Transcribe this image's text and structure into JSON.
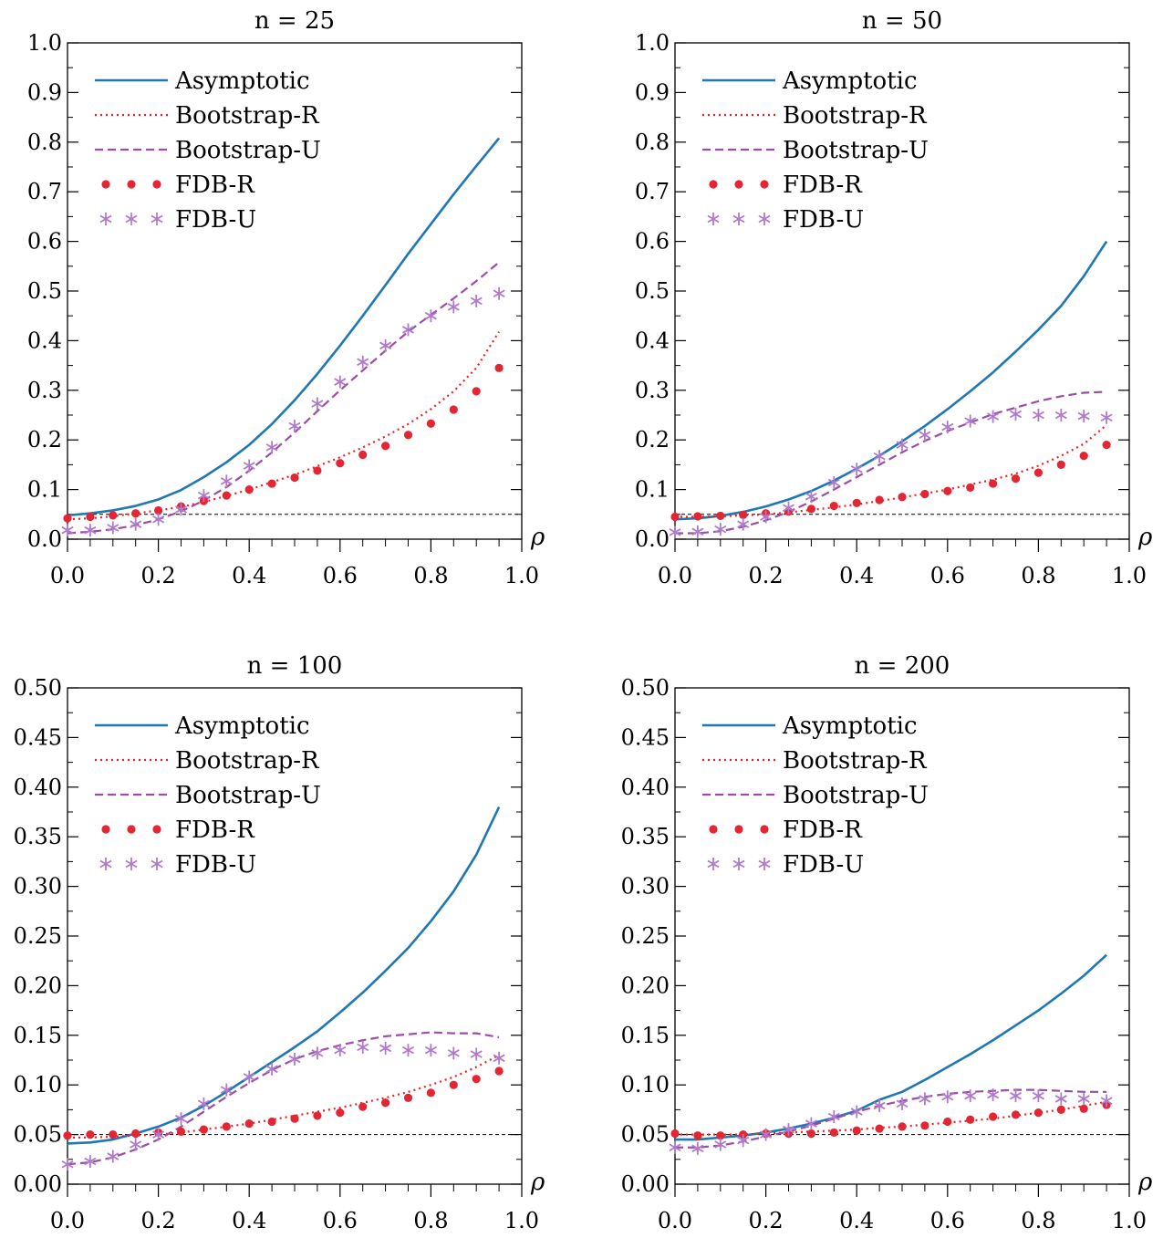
{
  "chart_data": [
    {
      "type": "line",
      "title": "n = 25",
      "xlabel": "ρ",
      "ylabel": "",
      "xlim": [
        0.0,
        1.0
      ],
      "ylim": [
        0.0,
        1.0
      ],
      "x_ticks": [
        "0.0",
        "0.2",
        "0.4",
        "0.6",
        "0.8",
        "1.0"
      ],
      "y_ticks": [
        "0.0",
        "0.1",
        "0.2",
        "0.3",
        "0.4",
        "0.5",
        "0.6",
        "0.7",
        "0.8",
        "0.9",
        "1.0"
      ],
      "reference_line": 0.05,
      "legend_position": "top-left",
      "x": [
        0.0,
        0.05,
        0.1,
        0.15,
        0.2,
        0.25,
        0.3,
        0.35,
        0.4,
        0.45,
        0.5,
        0.55,
        0.6,
        0.65,
        0.7,
        0.75,
        0.8,
        0.85,
        0.9,
        0.95
      ],
      "series": [
        {
          "name": "Asymptotic",
          "style": "solid",
          "color": "#1f77b4",
          "values": [
            0.048,
            0.052,
            0.058,
            0.067,
            0.08,
            0.099,
            0.125,
            0.155,
            0.19,
            0.232,
            0.28,
            0.333,
            0.39,
            0.45,
            0.512,
            0.575,
            0.635,
            0.695,
            0.752,
            0.808
          ]
        },
        {
          "name": "Bootstrap-R",
          "style": "dotted",
          "color": "#ee2222",
          "values": [
            0.04,
            0.042,
            0.046,
            0.052,
            0.058,
            0.065,
            0.075,
            0.087,
            0.1,
            0.115,
            0.13,
            0.147,
            0.165,
            0.185,
            0.207,
            0.232,
            0.262,
            0.298,
            0.345,
            0.418
          ]
        },
        {
          "name": "Bootstrap-U",
          "style": "dashed",
          "color": "#9b4ea6",
          "values": [
            0.012,
            0.015,
            0.02,
            0.028,
            0.04,
            0.056,
            0.078,
            0.105,
            0.138,
            0.175,
            0.215,
            0.258,
            0.3,
            0.34,
            0.38,
            0.418,
            0.452,
            0.485,
            0.52,
            0.558
          ]
        },
        {
          "name": "FDB-R",
          "style": "dots",
          "color": "#e32633",
          "values": [
            0.042,
            0.045,
            0.048,
            0.052,
            0.058,
            0.066,
            0.077,
            0.088,
            0.1,
            0.112,
            0.124,
            0.138,
            0.153,
            0.17,
            0.188,
            0.21,
            0.233,
            0.261,
            0.298,
            0.345
          ]
        },
        {
          "name": "FDB-U",
          "style": "stars",
          "color": "#b07acc",
          "values": [
            0.018,
            0.018,
            0.023,
            0.03,
            0.04,
            0.06,
            0.088,
            0.117,
            0.148,
            0.185,
            0.228,
            0.273,
            0.317,
            0.357,
            0.39,
            0.422,
            0.45,
            0.468,
            0.48,
            0.495
          ]
        }
      ]
    },
    {
      "type": "line",
      "title": "n = 50",
      "xlabel": "ρ",
      "ylabel": "",
      "xlim": [
        0.0,
        1.0
      ],
      "ylim": [
        0.0,
        1.0
      ],
      "x_ticks": [
        "0.0",
        "0.2",
        "0.4",
        "0.6",
        "0.8",
        "1.0"
      ],
      "y_ticks": [
        "0.0",
        "0.1",
        "0.2",
        "0.3",
        "0.4",
        "0.5",
        "0.6",
        "0.7",
        "0.8",
        "0.9",
        "1.0"
      ],
      "reference_line": 0.05,
      "legend_position": "top-left",
      "x": [
        0.0,
        0.05,
        0.1,
        0.15,
        0.2,
        0.25,
        0.3,
        0.35,
        0.4,
        0.45,
        0.5,
        0.55,
        0.6,
        0.65,
        0.7,
        0.75,
        0.8,
        0.85,
        0.9,
        0.95
      ],
      "series": [
        {
          "name": "Asymptotic",
          "style": "solid",
          "color": "#1f77b4",
          "values": [
            0.04,
            0.042,
            0.047,
            0.055,
            0.066,
            0.08,
            0.097,
            0.118,
            0.142,
            0.168,
            0.197,
            0.228,
            0.262,
            0.298,
            0.336,
            0.378,
            0.422,
            0.47,
            0.53,
            0.6
          ]
        },
        {
          "name": "Bootstrap-R",
          "style": "dotted",
          "color": "#ee2222",
          "values": [
            0.045,
            0.045,
            0.046,
            0.048,
            0.05,
            0.054,
            0.059,
            0.064,
            0.07,
            0.077,
            0.084,
            0.092,
            0.1,
            0.11,
            0.12,
            0.132,
            0.148,
            0.168,
            0.192,
            0.23
          ]
        },
        {
          "name": "Bootstrap-U",
          "style": "dashed",
          "color": "#9b4ea6",
          "values": [
            0.012,
            0.012,
            0.016,
            0.025,
            0.038,
            0.055,
            0.076,
            0.1,
            0.125,
            0.15,
            0.175,
            0.198,
            0.218,
            0.235,
            0.252,
            0.265,
            0.278,
            0.288,
            0.295,
            0.297
          ]
        },
        {
          "name": "FDB-R",
          "style": "dots",
          "color": "#e32633",
          "values": [
            0.045,
            0.046,
            0.047,
            0.049,
            0.052,
            0.056,
            0.061,
            0.067,
            0.073,
            0.079,
            0.085,
            0.091,
            0.097,
            0.104,
            0.112,
            0.122,
            0.134,
            0.15,
            0.168,
            0.19
          ]
        },
        {
          "name": "FDB-U",
          "style": "stars",
          "color": "#b07acc",
          "values": [
            0.014,
            0.015,
            0.02,
            0.03,
            0.045,
            0.063,
            0.086,
            0.114,
            0.141,
            0.167,
            0.19,
            0.21,
            0.226,
            0.238,
            0.247,
            0.252,
            0.25,
            0.25,
            0.248,
            0.245
          ]
        }
      ]
    },
    {
      "type": "line",
      "title": "n = 100",
      "xlabel": "ρ",
      "ylabel": "",
      "xlim": [
        0.0,
        1.0
      ],
      "ylim": [
        0.0,
        0.5
      ],
      "x_ticks": [
        "0.0",
        "0.2",
        "0.4",
        "0.6",
        "0.8",
        "1.0"
      ],
      "y_ticks": [
        "0.00",
        "0.05",
        "0.10",
        "0.15",
        "0.20",
        "0.25",
        "0.30",
        "0.35",
        "0.40",
        "0.45",
        "0.50"
      ],
      "reference_line": 0.05,
      "legend_position": "top-left",
      "x": [
        0.0,
        0.05,
        0.1,
        0.15,
        0.2,
        0.25,
        0.3,
        0.35,
        0.4,
        0.45,
        0.5,
        0.55,
        0.6,
        0.65,
        0.7,
        0.75,
        0.8,
        0.85,
        0.9,
        0.95
      ],
      "series": [
        {
          "name": "Asymptotic",
          "style": "solid",
          "color": "#1f77b4",
          "values": [
            0.041,
            0.042,
            0.045,
            0.051,
            0.058,
            0.067,
            0.079,
            0.093,
            0.108,
            0.123,
            0.138,
            0.154,
            0.173,
            0.193,
            0.215,
            0.238,
            0.265,
            0.295,
            0.332,
            0.38
          ]
        },
        {
          "name": "Bootstrap-R",
          "style": "dotted",
          "color": "#ee2222",
          "values": [
            0.047,
            0.047,
            0.048,
            0.049,
            0.05,
            0.052,
            0.055,
            0.058,
            0.061,
            0.065,
            0.069,
            0.073,
            0.077,
            0.082,
            0.087,
            0.093,
            0.1,
            0.108,
            0.118,
            0.13
          ]
        },
        {
          "name": "Bootstrap-U",
          "style": "dashed",
          "color": "#9b4ea6",
          "values": [
            0.02,
            0.022,
            0.027,
            0.035,
            0.045,
            0.058,
            0.073,
            0.088,
            0.102,
            0.115,
            0.126,
            0.134,
            0.14,
            0.145,
            0.149,
            0.151,
            0.153,
            0.152,
            0.152,
            0.148
          ]
        },
        {
          "name": "FDB-R",
          "style": "dots",
          "color": "#e32633",
          "values": [
            0.049,
            0.05,
            0.05,
            0.051,
            0.052,
            0.053,
            0.055,
            0.058,
            0.061,
            0.063,
            0.066,
            0.069,
            0.072,
            0.078,
            0.082,
            0.087,
            0.092,
            0.1,
            0.106,
            0.114
          ]
        },
        {
          "name": "FDB-U",
          "style": "stars",
          "color": "#b07acc",
          "values": [
            0.02,
            0.023,
            0.028,
            0.04,
            0.05,
            0.066,
            0.081,
            0.095,
            0.108,
            0.116,
            0.126,
            0.132,
            0.135,
            0.138,
            0.137,
            0.135,
            0.135,
            0.132,
            0.131,
            0.127
          ]
        }
      ]
    },
    {
      "type": "line",
      "title": "n = 200",
      "xlabel": "ρ",
      "ylabel": "",
      "xlim": [
        0.0,
        1.0
      ],
      "ylim": [
        0.0,
        0.5
      ],
      "x_ticks": [
        "0.0",
        "0.2",
        "0.4",
        "0.6",
        "0.8",
        "1.0"
      ],
      "y_ticks": [
        "0.00",
        "0.05",
        "0.10",
        "0.15",
        "0.20",
        "0.25",
        "0.30",
        "0.35",
        "0.40",
        "0.45",
        "0.50"
      ],
      "reference_line": 0.05,
      "legend_position": "top-left",
      "x": [
        0.0,
        0.05,
        0.1,
        0.15,
        0.2,
        0.25,
        0.3,
        0.35,
        0.4,
        0.45,
        0.5,
        0.55,
        0.6,
        0.65,
        0.7,
        0.75,
        0.8,
        0.85,
        0.9,
        0.95
      ],
      "series": [
        {
          "name": "Asymptotic",
          "style": "solid",
          "color": "#1f77b4",
          "values": [
            0.045,
            0.045,
            0.047,
            0.049,
            0.052,
            0.056,
            0.061,
            0.067,
            0.074,
            0.085,
            0.093,
            0.105,
            0.118,
            0.131,
            0.145,
            0.16,
            0.175,
            0.192,
            0.21,
            0.231
          ]
        },
        {
          "name": "Bootstrap-R",
          "style": "dotted",
          "color": "#ee2222",
          "values": [
            0.05,
            0.05,
            0.05,
            0.05,
            0.051,
            0.052,
            0.053,
            0.054,
            0.055,
            0.057,
            0.058,
            0.06,
            0.062,
            0.064,
            0.066,
            0.069,
            0.072,
            0.075,
            0.079,
            0.083
          ]
        },
        {
          "name": "Bootstrap-U",
          "style": "dashed",
          "color": "#9b4ea6",
          "values": [
            0.037,
            0.037,
            0.039,
            0.043,
            0.048,
            0.053,
            0.059,
            0.066,
            0.073,
            0.079,
            0.084,
            0.088,
            0.091,
            0.093,
            0.094,
            0.095,
            0.095,
            0.094,
            0.093,
            0.093
          ]
        },
        {
          "name": "FDB-R",
          "style": "dots",
          "color": "#e32633",
          "values": [
            0.051,
            0.049,
            0.049,
            0.05,
            0.051,
            0.051,
            0.051,
            0.052,
            0.054,
            0.056,
            0.058,
            0.059,
            0.063,
            0.065,
            0.068,
            0.07,
            0.072,
            0.075,
            0.076,
            0.08
          ]
        },
        {
          "name": "FDB-U",
          "style": "stars",
          "color": "#b07acc",
          "values": [
            0.037,
            0.036,
            0.04,
            0.044,
            0.05,
            0.055,
            0.061,
            0.068,
            0.073,
            0.079,
            0.081,
            0.086,
            0.088,
            0.089,
            0.09,
            0.089,
            0.089,
            0.086,
            0.086,
            0.084
          ]
        }
      ]
    }
  ]
}
